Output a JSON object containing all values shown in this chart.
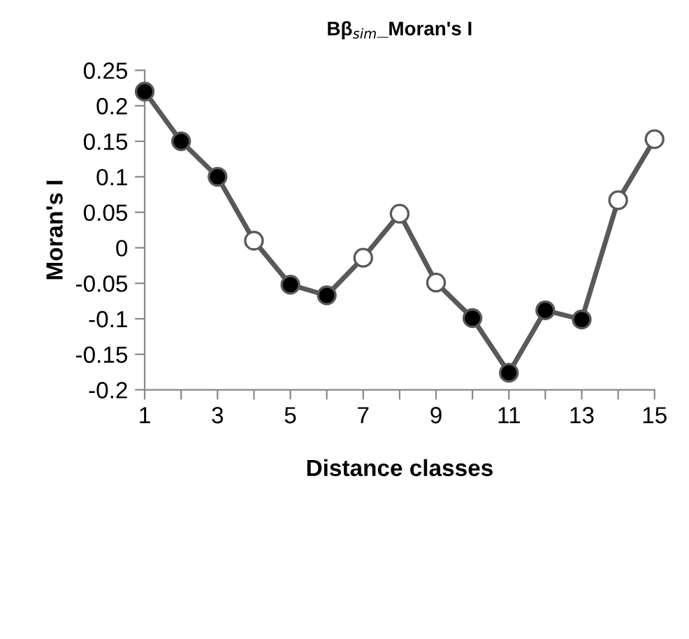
{
  "chart_data": {
    "type": "line",
    "title": "Bβ$_{sim}$_Moran's I",
    "xlabel": "Distance classes",
    "ylabel": "Moran's I",
    "x": [
      1,
      2,
      3,
      4,
      5,
      6,
      7,
      8,
      9,
      10,
      11,
      12,
      13,
      14,
      15
    ],
    "series": [
      {
        "color": "#595959",
        "values": [
          0.22,
          0.15,
          0.1,
          0.01,
          -0.052,
          -0.067,
          -0.014,
          0.048,
          -0.049,
          -0.099,
          -0.176,
          -0.088,
          -0.101,
          0.067,
          0.153
        ],
        "colors": [
          "#000000",
          "#000000",
          "#000000",
          "#ffffff",
          "#000000",
          "#000000",
          "#ffffff",
          "#ffffff",
          "#ffffff",
          "#000000",
          "#000000",
          "#000000",
          "#000000",
          "#ffffff",
          "#ffffff"
        ]
      }
    ],
    "xlim": [
      1,
      15
    ],
    "xticks": [
      1,
      {
        "value": 2,
        "label": null
      },
      3,
      {
        "value": 4,
        "label": null
      },
      5,
      {
        "value": 6,
        "label": null
      },
      7,
      {
        "value": 8,
        "label": null
      },
      9,
      {
        "value": 10,
        "label": null
      },
      11,
      {
        "value": 12,
        "label": null
      },
      13,
      {
        "value": 14,
        "label": null
      },
      15
    ],
    "ylim": [
      -0.2,
      0.25
    ],
    "yticks": [
      -0.2,
      -0.15,
      -0.1,
      -0.05,
      0,
      0.05,
      0.1,
      0.15,
      0.2,
      0.25
    ],
    "marker": "circle",
    "line_style": "solid",
    "grid": false,
    "legend": false
  }
}
